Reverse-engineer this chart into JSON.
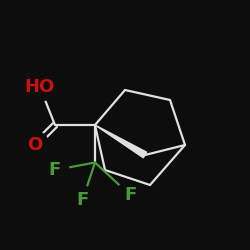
{
  "background_color": "#0d0d0d",
  "bond_color": "#e0e0e0",
  "atom_colors": {
    "F": "#4a9a3a",
    "O": "#cc1111",
    "C": "#e0e0e0"
  },
  "figsize": [
    2.5,
    2.5
  ],
  "dpi": 100,
  "bond_lw": 1.6,
  "font_size": 13
}
